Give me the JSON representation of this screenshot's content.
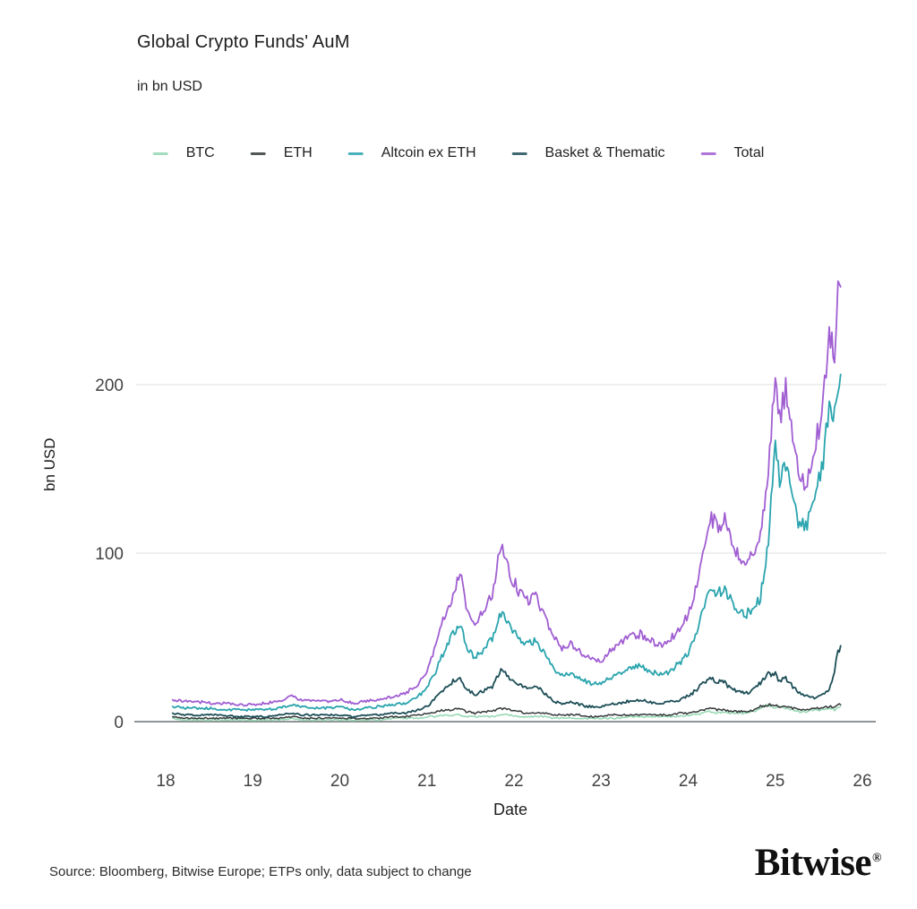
{
  "header": {
    "title": "Global Crypto Funds' AuM",
    "subtitle": "in bn USD"
  },
  "footer": {
    "source": "Source: Bloomberg, Bitwise Europe; ETPs only, data subject to change",
    "brand": "Bitwise",
    "brand_mark": "®"
  },
  "colors": {
    "background": "#ffffff",
    "gridline": "#e3e5e5",
    "baseline": "#8f9496",
    "tick_text": "#434343"
  },
  "chart_data": {
    "type": "line",
    "title": "Global Crypto Funds' AuM",
    "subtitle": "in bn USD",
    "xlabel": "Date",
    "ylabel": "bn USD",
    "x_ticks": [
      "18",
      "19",
      "20",
      "21",
      "22",
      "23",
      "24",
      "25",
      "26"
    ],
    "y_ticks": [
      0,
      100,
      200
    ],
    "xlim": [
      17.7,
      26.1
    ],
    "ylim": [
      0,
      280
    ],
    "grid": "horizontal-y",
    "legend_position": "top",
    "x_units": "year (20xx)",
    "y_units": "bn USD",
    "x": [
      18.08,
      18.2,
      18.35,
      18.5,
      18.65,
      18.8,
      19.0,
      19.15,
      19.3,
      19.45,
      19.55,
      19.7,
      19.85,
      20.0,
      20.15,
      20.3,
      20.45,
      20.6,
      20.75,
      20.9,
      21.0,
      21.1,
      21.2,
      21.3,
      21.38,
      21.45,
      21.55,
      21.65,
      21.75,
      21.85,
      21.95,
      22.05,
      22.15,
      22.25,
      22.35,
      22.45,
      22.55,
      22.65,
      22.75,
      22.85,
      23.0,
      23.1,
      23.2,
      23.3,
      23.45,
      23.6,
      23.7,
      23.8,
      23.9,
      24.0,
      24.1,
      24.17,
      24.25,
      24.33,
      24.42,
      24.5,
      24.58,
      24.67,
      24.75,
      24.83,
      24.92,
      25.0,
      25.05,
      25.12,
      25.2,
      25.28,
      25.35,
      25.45,
      25.55,
      25.62,
      25.68,
      25.72,
      25.75
    ],
    "series": [
      {
        "name": "BTC",
        "color": "#93d7b1",
        "stroke_width": 1.5,
        "values": [
          2,
          1,
          1,
          1,
          1,
          1,
          1,
          1,
          1,
          2,
          1,
          1,
          1,
          1,
          1,
          1,
          1,
          2,
          2,
          2,
          3,
          3,
          4,
          4,
          4,
          3,
          3,
          3,
          3,
          4,
          4,
          3,
          3,
          3,
          3,
          2,
          2,
          2,
          2,
          2,
          2,
          2,
          2,
          3,
          3,
          3,
          3,
          3,
          3,
          4,
          4,
          5,
          6,
          5,
          6,
          5,
          5,
          5,
          6,
          8,
          10,
          8,
          9,
          8,
          7,
          6,
          6,
          7,
          7,
          8,
          7,
          8,
          9
        ]
      },
      {
        "name": "ETH",
        "color": "#35393a",
        "stroke_width": 1.5,
        "values": [
          3,
          2,
          2,
          2,
          2,
          2,
          2,
          2,
          2,
          3,
          2,
          2,
          2,
          2,
          2,
          2,
          2,
          3,
          3,
          4,
          5,
          6,
          7,
          7,
          8,
          6,
          5,
          6,
          6,
          8,
          7,
          6,
          5,
          5,
          5,
          4,
          4,
          4,
          4,
          3,
          3,
          4,
          4,
          4,
          4,
          4,
          4,
          4,
          5,
          5,
          6,
          7,
          8,
          7,
          7,
          6,
          6,
          6,
          7,
          9,
          10,
          10,
          9,
          9,
          8,
          7,
          7,
          8,
          8,
          9,
          9,
          10,
          10
        ]
      },
      {
        "name": "Altcoin ex ETH",
        "color": "#2aa4ae",
        "stroke_width": 1.8,
        "values": [
          9,
          8,
          8,
          8,
          7,
          7,
          7,
          7,
          8,
          10,
          9,
          8,
          8,
          9,
          7,
          8,
          9,
          10,
          11,
          15,
          20,
          30,
          42,
          52,
          58,
          45,
          38,
          43,
          50,
          65,
          56,
          50,
          46,
          48,
          40,
          31,
          27,
          29,
          26,
          23,
          22,
          26,
          29,
          31,
          33,
          29,
          28,
          30,
          35,
          40,
          52,
          66,
          80,
          76,
          80,
          70,
          66,
          64,
          68,
          74,
          105,
          165,
          140,
          152,
          130,
          118,
          115,
          135,
          155,
          185,
          180,
          200,
          206
        ]
      },
      {
        "name": "Basket & Thematic",
        "color": "#1d4e57",
        "stroke_width": 1.8,
        "values": [
          5,
          4,
          4,
          4,
          4,
          3,
          3,
          3,
          4,
          5,
          4,
          4,
          4,
          4,
          3,
          4,
          4,
          5,
          5,
          7,
          9,
          14,
          20,
          24,
          26,
          19,
          16,
          18,
          21,
          31,
          26,
          22,
          20,
          21,
          17,
          12,
          11,
          12,
          10,
          9,
          9,
          10,
          11,
          12,
          13,
          11,
          11,
          12,
          13,
          15,
          19,
          23,
          26,
          24,
          23,
          19,
          18,
          17,
          19,
          23,
          28,
          28,
          24,
          26,
          21,
          17,
          15,
          14,
          16,
          20,
          30,
          42,
          45
        ]
      },
      {
        "name": "Total",
        "color": "#a05ed2",
        "stroke_width": 1.8,
        "values": [
          13,
          12,
          12,
          11,
          11,
          10,
          10,
          11,
          12,
          15,
          13,
          12,
          12,
          13,
          11,
          12,
          13,
          15,
          17,
          22,
          30,
          45,
          62,
          75,
          88,
          70,
          58,
          66,
          76,
          104,
          88,
          78,
          72,
          74,
          62,
          50,
          44,
          46,
          42,
          38,
          36,
          42,
          46,
          50,
          52,
          47,
          46,
          49,
          56,
          63,
          80,
          100,
          122,
          115,
          120,
          104,
          99,
          96,
          100,
          108,
          145,
          208,
          182,
          196,
          168,
          145,
          137,
          162,
          188,
          228,
          222,
          252,
          258
        ]
      }
    ]
  }
}
